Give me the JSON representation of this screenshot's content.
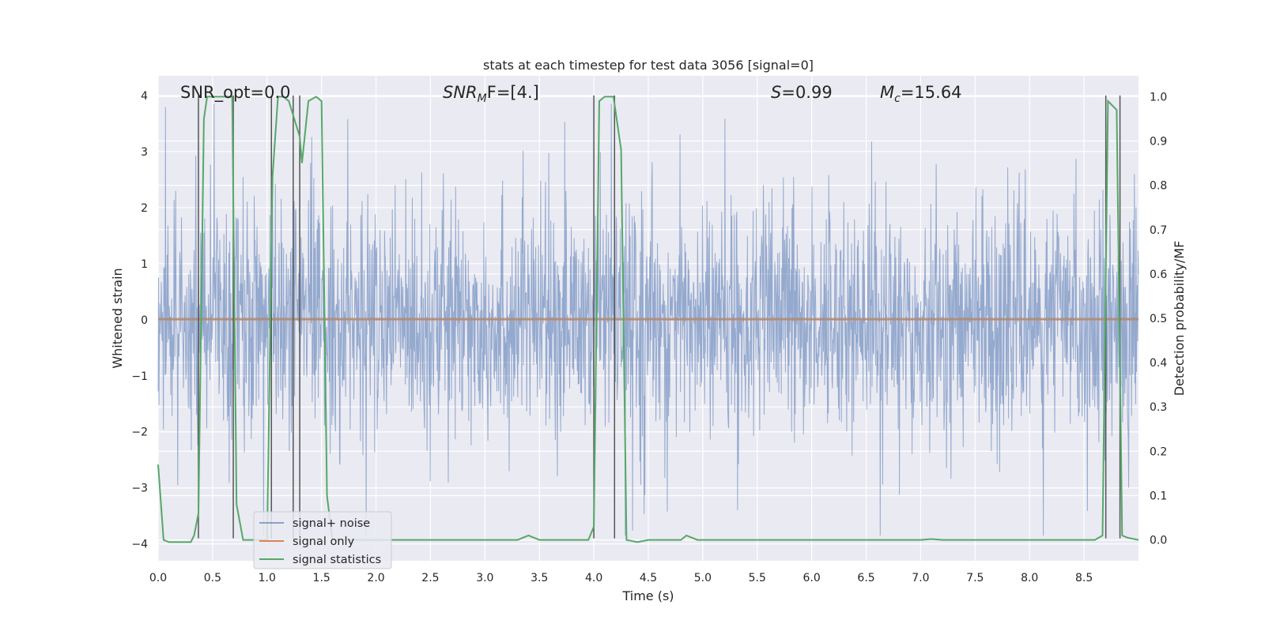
{
  "chart_data": {
    "type": "line",
    "title": "stats at each timestep for test data 3056 [signal=0]",
    "xlabel": "Time (s)",
    "ylabel_left": "Whitened strain",
    "ylabel_right": "Detection probability/MF",
    "xlim": [
      0.0,
      9.0
    ],
    "ylim_left": [
      -4.3,
      4.35
    ],
    "ylim_right": [
      -0.047,
      1.047
    ],
    "xticks": [
      0.0,
      0.5,
      1.0,
      1.5,
      2.0,
      2.5,
      3.0,
      3.5,
      4.0,
      4.5,
      5.0,
      5.5,
      6.0,
      6.5,
      7.0,
      7.5,
      8.0,
      8.5
    ],
    "xtick_labels": [
      "0.0",
      "0.5",
      "1.0",
      "1.5",
      "2.0",
      "2.5",
      "3.0",
      "3.5",
      "4.0",
      "4.5",
      "5.0",
      "5.5",
      "6.0",
      "6.5",
      "7.0",
      "7.5",
      "8.0",
      "8.5"
    ],
    "yticks_left": [
      4,
      3,
      2,
      1,
      0,
      -1,
      -2,
      -3,
      -4
    ],
    "ytick_labels_left": [
      "4",
      "3",
      "2",
      "1",
      "0",
      "−1",
      "−2",
      "−3",
      "−4"
    ],
    "yticks_right": [
      1.0,
      0.9,
      0.8,
      0.7,
      0.6,
      0.5,
      0.4,
      0.3,
      0.2,
      0.1,
      0.0
    ],
    "ytick_labels_right": [
      "1.0",
      "0.9",
      "0.8",
      "0.7",
      "0.6",
      "0.5",
      "0.4",
      "0.3",
      "0.2",
      "0.1",
      "0.0"
    ],
    "grid": true,
    "legend_position": "lower-left",
    "annotations": {
      "snr_opt": "SNR_opt=0.0",
      "snr_mf_base": "SNR",
      "snr_mf_sub": "M",
      "snr_mf_rest": "F=[4.]",
      "s_italic": "S",
      "s_value": "=0.99",
      "mc_base": "M",
      "mc_sub": "c",
      "mc_value": "=15.64"
    },
    "series": [
      {
        "name": "signal+ noise",
        "color": "#4c72b0",
        "style": "dense whitened-strain noise, amplitude roughly ±2.5 with spikes to ±4"
      },
      {
        "name": "signal only",
        "color": "#dd8452",
        "x": [
          0.0,
          9.0
        ],
        "y": [
          0.0,
          0.0
        ]
      },
      {
        "name": "signal statistics",
        "color": "#55a868",
        "axis": "right",
        "x": [
          0.0,
          0.05,
          0.1,
          0.2,
          0.3,
          0.33,
          0.37,
          0.42,
          0.45,
          0.6,
          0.68,
          0.72,
          0.78,
          0.82,
          0.9,
          1.0,
          1.05,
          1.1,
          1.15,
          1.2,
          1.3,
          1.32,
          1.38,
          1.45,
          1.5,
          1.55,
          1.6,
          1.7,
          2.0,
          3.0,
          3.3,
          3.4,
          3.5,
          3.7,
          3.95,
          4.0,
          4.05,
          4.1,
          4.18,
          4.25,
          4.3,
          4.4,
          4.5,
          4.8,
          4.85,
          4.95,
          5.5,
          7.0,
          7.1,
          7.2,
          8.6,
          8.67,
          8.72,
          8.8,
          8.85,
          8.9,
          9.0
        ],
        "y": [
          0.17,
          0.0,
          -0.005,
          -0.005,
          -0.005,
          0.01,
          0.06,
          0.95,
          1.0,
          1.0,
          1.0,
          0.08,
          0.0,
          0.0,
          0.0,
          0.0,
          0.82,
          1.0,
          1.0,
          0.99,
          0.91,
          0.85,
          0.99,
          1.0,
          0.99,
          0.1,
          0.0,
          0.0,
          0.0,
          0.0,
          0.0,
          0.01,
          0.0,
          0.0,
          0.0,
          0.03,
          0.99,
          1.0,
          1.0,
          0.88,
          0.0,
          -0.005,
          0.0,
          0.0,
          0.01,
          0.0,
          0.0,
          0.0,
          0.002,
          0.0,
          0.0,
          0.01,
          0.99,
          0.97,
          0.01,
          0.005,
          0.0
        ]
      }
    ],
    "vertical_lines": {
      "color": "#555555",
      "x": [
        0.37,
        0.69,
        1.04,
        1.24,
        1.3,
        4.0,
        4.19,
        8.7,
        8.83
      ],
      "y_top": [
        4.0,
        4.0,
        4.0,
        4.0,
        4.0,
        4.0,
        4.0,
        4.0,
        4.0
      ],
      "y_bottom": [
        -3.9,
        -3.9,
        -3.9,
        -3.9,
        -3.9,
        -3.9,
        -3.9,
        -3.9,
        -3.9
      ]
    }
  }
}
